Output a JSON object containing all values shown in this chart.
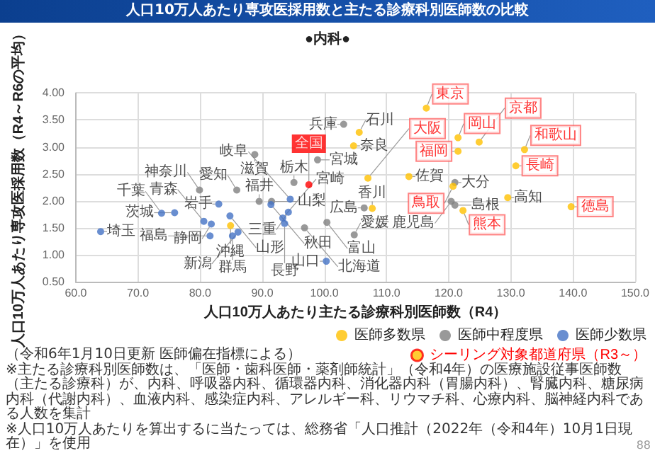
{
  "chart_data": {
    "type": "scatter",
    "title": "人口10万人あたり専攻医採用数と主たる診療科別医師数の比較",
    "subtitle": "●内科●",
    "xlabel": "人口10万人あたり主たる診療科別医師数（R4）",
    "ylabel": "人口10万人あたり専攻医採用数（R4～R6の平均）",
    "xlim": [
      60,
      150
    ],
    "xticks": [
      {
        "value": 60,
        "label": "60.0"
      },
      {
        "value": 70,
        "label": "70.0"
      },
      {
        "value": 80,
        "label": "80.0"
      },
      {
        "value": 90,
        "label": "90.0"
      },
      {
        "value": 100,
        "label": "100.0"
      },
      {
        "value": 110,
        "label": "110.0"
      },
      {
        "value": 120,
        "label": "120.0"
      },
      {
        "value": 130,
        "label": "130.0"
      },
      {
        "value": 140,
        "label": "140.0"
      },
      {
        "value": 150,
        "label": "150.0"
      }
    ],
    "ylim": [
      0.5,
      4
    ],
    "yticks": [
      {
        "value": 0.5,
        "label": "0.50"
      },
      {
        "value": 1,
        "label": "1.00"
      },
      {
        "value": 1.5,
        "label": "1.50"
      },
      {
        "value": 2,
        "label": "2.00"
      },
      {
        "value": 2.5,
        "label": "2.50"
      },
      {
        "value": 3,
        "label": "3.00"
      },
      {
        "value": 3.5,
        "label": "3.50"
      },
      {
        "value": 4,
        "label": "4.00"
      }
    ],
    "grid": true,
    "marker": "circle",
    "legend": "bottom right",
    "series": [
      {
        "name": "医師多数県",
        "color": "#ffc000",
        "x": [
          105.6,
          104.7,
          113.6,
          129.5,
          107.7,
          84.9
        ],
        "values": [
          3.27,
          3.02,
          2.45,
          2.06,
          1.86,
          1.54
        ],
        "value_labels": [
          "石川",
          "奈良",
          "佐賀",
          "高知",
          "香川",
          "沖縄"
        ]
      },
      {
        "name": "医師中程度県",
        "color": "#7f7f7f",
        "x": [
          103.1,
          98.9,
          88.8,
          79.9,
          85.9,
          95.1,
          89.5,
          91.5,
          121.0,
          120.4,
          121.0,
          106.4,
          100.4,
          96.8,
          104.8
        ],
        "values": [
          3.42,
          2.76,
          2.86,
          2.2,
          2.2,
          2.34,
          1.99,
          1.99,
          2.34,
          1.99,
          1.92,
          1.87,
          1.6,
          1.5,
          1.37
        ],
        "value_labels": [
          "兵庫",
          "宮城",
          "滋賀",
          "神奈川",
          "愛知",
          "栃木",
          "福井",
          "山梨",
          "大分",
          "鹿児島",
          "島根",
          "広島",
          "富山",
          "北海道",
          "愛媛"
        ]
      },
      {
        "name": "医師少数県",
        "color": "#4472c4",
        "x": [
          64.0,
          73.8,
          75.9,
          83.0,
          91.4,
          94.5,
          94.2,
          84.8,
          93.3,
          80.6,
          81.8,
          93.6,
          86.1,
          81.6,
          85.2,
          100.3
        ],
        "values": [
          1.43,
          1.77,
          1.78,
          1.94,
          1.93,
          2.03,
          1.79,
          1.72,
          1.68,
          1.62,
          1.57,
          1.58,
          1.42,
          1.35,
          1.35,
          0.88
        ],
        "value_labels": [
          "埼玉",
          "千葉",
          "茨城",
          "岩手",
          "秋田",
          "岐阜",
          "三重",
          "山形",
          "宮崎",
          "青森",
          "静岡",
          "長野",
          "新潟",
          "福島",
          "群馬",
          "山口"
        ]
      },
      {
        "name": "シーリング対象都道府県（R3～）",
        "color": "#ffc000",
        "x": [
          116.4,
          121.5,
          124.9,
          121.5,
          132.2,
          130.8,
          107.0,
          120.7,
          122.3,
          139.7
        ],
        "values": [
          3.72,
          3.17,
          3.09,
          2.92,
          2.95,
          2.65,
          2.42,
          2.27,
          1.82,
          1.89
        ],
        "value_labels": [
          "東京",
          "岡山",
          "京都",
          "福岡",
          "和歌山",
          "長崎",
          "大阪",
          "鳥取",
          "熊本",
          "徳島"
        ]
      },
      {
        "color": "#ff0000",
        "x": [
          97.5
        ],
        "values": [
          2.3
        ],
        "value_labels": [
          "全国"
        ]
      }
    ],
    "annotations": [
      "（令和6年1月10日更新 医師偏在指標による）",
      "※主たる診療科別医師数は、「医師・歯科医師・薬剤師統計」（令和4年）の医療施設従事医師数（主たる診療科）が、内科、呼吸器内科、循環器内科、消化器内科（胃腸内科）、腎臓内科、糖尿病内科（代謝内科）、血液内科、感染症内科、アレルギー科、リウマチ科、心療内科、脳神経内科である人数を集計",
      "※人口10万人あたりを算出するに当たっては、総務省「人口推計（2022年（令和4年）10月1日現在）」を使用",
      "88"
    ]
  }
}
